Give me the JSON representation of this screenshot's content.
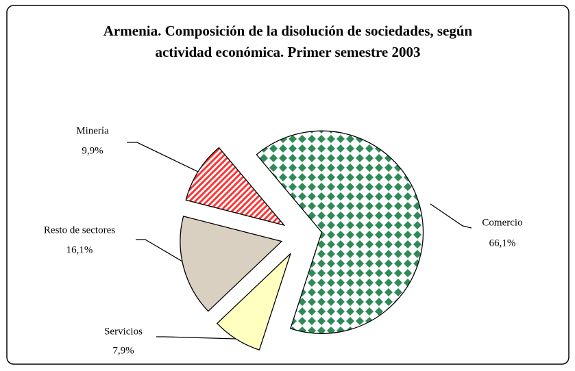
{
  "chart_data": {
    "type": "pie",
    "title": "Armenia. Composición de la disolución de sociedades, según actividad económica. Primer semestre 2003",
    "categories": [
      "Comercio",
      "Servicios",
      "Resto de sectores",
      "Minería"
    ],
    "values": [
      66.1,
      7.9,
      16.1,
      9.9
    ],
    "value_labels": [
      "66,1%",
      "7,9%",
      "16,1%",
      "9,9%"
    ],
    "colors": [
      "#2e8b57",
      "#ffffc0",
      "#d9d0c1",
      "#ff3333"
    ],
    "patterns": [
      "diamond",
      "solid",
      "solid",
      "stripes"
    ]
  }
}
